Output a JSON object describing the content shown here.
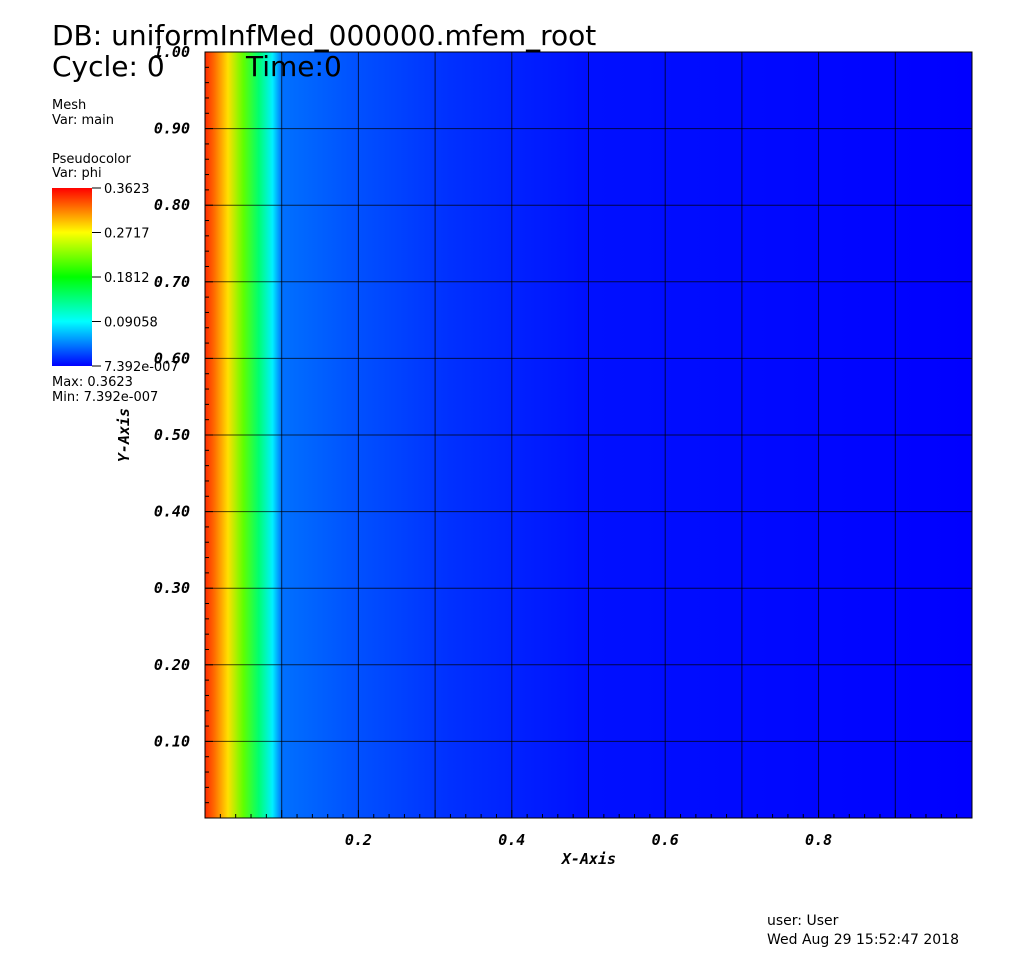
{
  "header": {
    "database": "DB: uniformInfMed_000000.mfem_root",
    "cycle": "Cycle: 0",
    "time": "Time:0"
  },
  "legend": {
    "mesh": {
      "title": "Mesh",
      "var": "Var: main"
    },
    "pseudocolor": {
      "title": "Pseudocolor",
      "var": "Var: phi",
      "ticks": [
        "0.3623",
        "0.2717",
        "0.1812",
        "0.09058",
        "7.392e-007"
      ],
      "max": "Max:  0.3623",
      "min": "Min:  7.392e-007"
    }
  },
  "axes": {
    "x_label": "X-Axis",
    "y_label": "Y-Axis",
    "x_ticks": [
      "0.2",
      "0.4",
      "0.6",
      "0.8"
    ],
    "y_ticks": [
      "0.10",
      "0.20",
      "0.30",
      "0.40",
      "0.50",
      "0.60",
      "0.70",
      "0.80",
      "0.90",
      "1.00"
    ]
  },
  "footer": {
    "user": "user: User",
    "date": "Wed Aug 29 15:52:47 2018"
  }
}
